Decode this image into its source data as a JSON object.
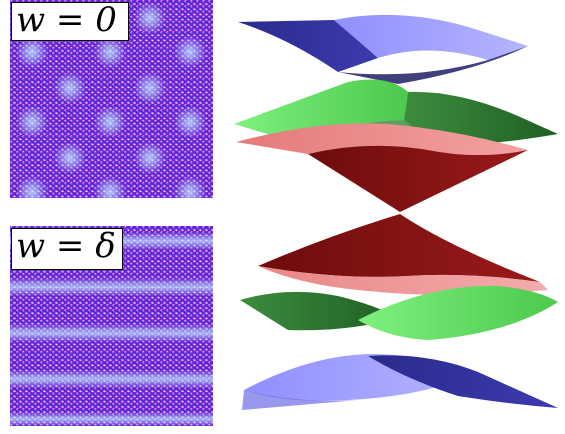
{
  "panels": [
    {
      "label": "w = 0",
      "pattern": "moire-hexagonal"
    },
    {
      "label": "w = δ",
      "pattern": "moire-striped"
    }
  ],
  "colors": {
    "lattice_background": "#7a1fd0",
    "lattice_bond": "#2b2bd9",
    "lattice_glow": "#bfe3ff",
    "band_blue": "#4b4bd8",
    "band_blue_light": "#9a9aff",
    "band_green": "#2f8a3a",
    "band_green_light": "#8ef08e",
    "band_red": "#8b1010",
    "band_red_light": "#e88a8a"
  },
  "bands": [
    "blue-upper",
    "green-upper",
    "red-upper",
    "red-lower",
    "green-lower",
    "blue-lower"
  ]
}
